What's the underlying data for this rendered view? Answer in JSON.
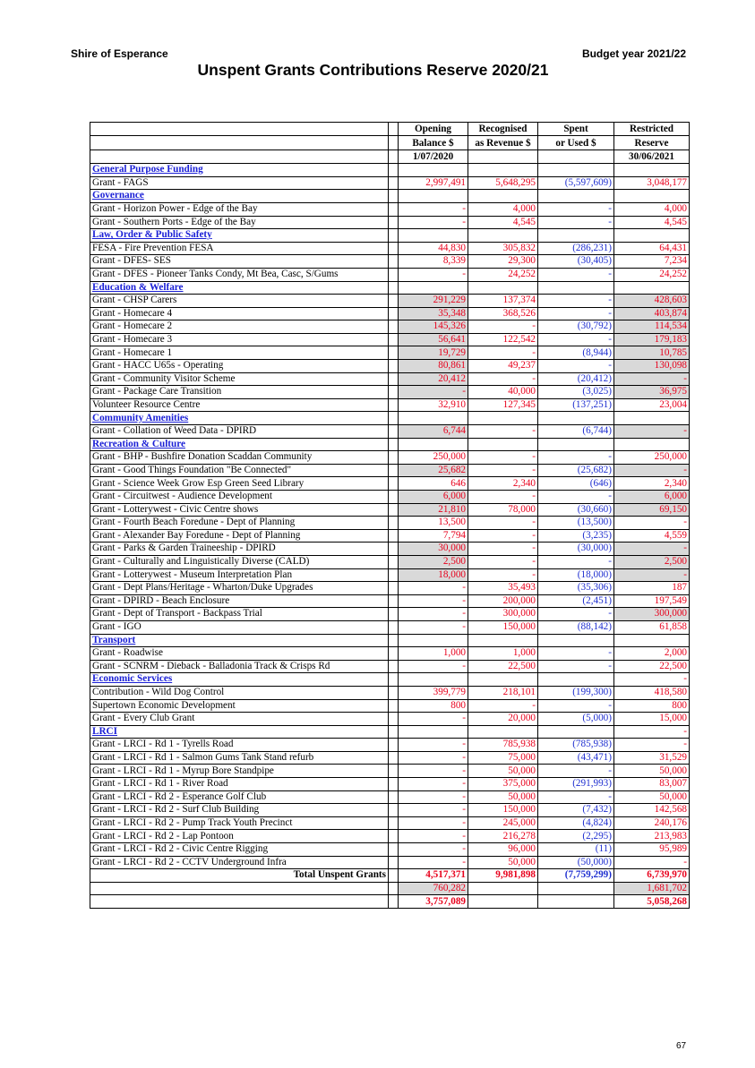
{
  "header": {
    "org": "Shire of Esperance",
    "budget": "Budget year 2021/22",
    "title": "Unspent Grants Contributions Reserve 2020/21"
  },
  "columns": [
    {
      "l1": "Opening",
      "l2": "Balance $",
      "l3": "1/07/2020"
    },
    {
      "l1": "Recognised",
      "l2": "as Revenue $",
      "l3": ""
    },
    {
      "l1": "Spent",
      "l2": "or Used $",
      "l3": ""
    },
    {
      "l1": "Restricted",
      "l2": "Reserve",
      "l3": "30/06/2021"
    }
  ],
  "rows": [
    {
      "t": "s",
      "name": "General Purpose Funding"
    },
    {
      "t": "r",
      "name": "Grant - FAGS",
      "v": [
        "2,997,491",
        "5,648,295",
        "(5,597,609)",
        "3,048,177"
      ],
      "sh": [
        0,
        0,
        0,
        0
      ]
    },
    {
      "t": "s",
      "name": "Governance"
    },
    {
      "t": "r",
      "name": "Grant - Horizon Power - Edge of the Bay",
      "v": [
        "-",
        "4,000",
        "-",
        "4,000"
      ],
      "sh": [
        0,
        0,
        0,
        0
      ]
    },
    {
      "t": "r",
      "name": "Grant - Southern Ports - Edge of the Bay",
      "v": [
        "-",
        "4,545",
        "-",
        "4,545"
      ],
      "sh": [
        0,
        0,
        0,
        0
      ]
    },
    {
      "t": "s",
      "name": "Law, Order & Public Safety"
    },
    {
      "t": "r",
      "name": "FESA - Fire Prevention FESA",
      "v": [
        "44,830",
        "305,832",
        "(286,231)",
        "64,431"
      ],
      "sh": [
        0,
        0,
        0,
        0
      ]
    },
    {
      "t": "r",
      "name": "Grant - DFES- SES",
      "v": [
        "8,339",
        "29,300",
        "(30,405)",
        "7,234"
      ],
      "sh": [
        0,
        0,
        0,
        0
      ]
    },
    {
      "t": "r",
      "name": "Grant - DFES - Pioneer Tanks Condy, Mt Bea, Casc, S/Gums",
      "v": [
        "-",
        "24,252",
        "-",
        "24,252"
      ],
      "sh": [
        0,
        0,
        0,
        0
      ]
    },
    {
      "t": "s",
      "name": "Education & Welfare"
    },
    {
      "t": "r",
      "name": "Grant - CHSP Carers",
      "v": [
        "291,229",
        "137,374",
        "-",
        "428,603"
      ],
      "sh": [
        1,
        0,
        0,
        1
      ]
    },
    {
      "t": "r",
      "name": "Grant - Homecare 4",
      "v": [
        "35,348",
        "368,526",
        "-",
        "403,874"
      ],
      "sh": [
        1,
        0,
        0,
        1
      ]
    },
    {
      "t": "r",
      "name": "Grant - Homecare 2",
      "v": [
        "145,326",
        "-",
        "(30,792)",
        "114,534"
      ],
      "sh": [
        1,
        0,
        0,
        1
      ]
    },
    {
      "t": "r",
      "name": "Grant - Homecare 3",
      "v": [
        "56,641",
        "122,542",
        "-",
        "179,183"
      ],
      "sh": [
        1,
        0,
        0,
        1
      ]
    },
    {
      "t": "r",
      "name": "Grant - Homecare 1",
      "v": [
        "19,729",
        "-",
        "(8,944)",
        "10,785"
      ],
      "sh": [
        1,
        0,
        0,
        1
      ]
    },
    {
      "t": "r",
      "name": "Grant - HACC U65s - Operating",
      "v": [
        "80,861",
        "49,237",
        "-",
        "130,098"
      ],
      "sh": [
        1,
        0,
        0,
        1
      ]
    },
    {
      "t": "r",
      "name": "Grant - Community Visitor Scheme",
      "v": [
        "20,412",
        "-",
        "(20,412)",
        "-"
      ],
      "sh": [
        1,
        0,
        0,
        1
      ]
    },
    {
      "t": "r",
      "name": "Grant - Package Care Transition",
      "v": [
        "-",
        "40,000",
        "(3,025)",
        "36,975"
      ],
      "sh": [
        1,
        0,
        0,
        1
      ]
    },
    {
      "t": "r",
      "name": "Volunteer Resource Centre",
      "v": [
        "32,910",
        "127,345",
        "(137,251)",
        "23,004"
      ],
      "sh": [
        0,
        0,
        0,
        0
      ]
    },
    {
      "t": "s",
      "name": "Community Amenities"
    },
    {
      "t": "r",
      "name": "Grant - Collation of Weed Data - DPIRD",
      "v": [
        "6,744",
        "-",
        "(6,744)",
        "-"
      ],
      "sh": [
        1,
        0,
        0,
        1
      ]
    },
    {
      "t": "s",
      "name": "Recreation & Culture"
    },
    {
      "t": "r",
      "name": "Grant - BHP - Bushfire Donation Scaddan Community",
      "v": [
        "250,000",
        "-",
        "-",
        "250,000"
      ],
      "sh": [
        0,
        0,
        0,
        0
      ]
    },
    {
      "t": "r",
      "name": "Grant - Good Things Foundation \"Be Connected\"",
      "v": [
        "25,682",
        "-",
        "(25,682)",
        "-"
      ],
      "sh": [
        1,
        0,
        0,
        1
      ]
    },
    {
      "t": "r",
      "name": "Grant - Science Week Grow Esp Green Seed Library",
      "v": [
        "646",
        "2,340",
        "(646)",
        "2,340"
      ],
      "sh": [
        0,
        0,
        0,
        0
      ]
    },
    {
      "t": "r",
      "name": "Grant - Circuitwest - Audience Development",
      "v": [
        "6,000",
        "-",
        "-",
        "6,000"
      ],
      "sh": [
        1,
        0,
        0,
        1
      ]
    },
    {
      "t": "r",
      "name": "Grant - Lotterywest - Civic Centre shows",
      "v": [
        "21,810",
        "78,000",
        "(30,660)",
        "69,150"
      ],
      "sh": [
        1,
        0,
        0,
        1
      ]
    },
    {
      "t": "r",
      "name": "Grant - Fourth Beach Foredune - Dept of Planning",
      "v": [
        "13,500",
        "-",
        "(13,500)",
        "-"
      ],
      "sh": [
        0,
        0,
        0,
        0
      ]
    },
    {
      "t": "r",
      "name": "Grant - Alexander Bay Foredune - Dept of Planning",
      "v": [
        "7,794",
        "-",
        "(3,235)",
        "4,559"
      ],
      "sh": [
        0,
        0,
        0,
        0
      ]
    },
    {
      "t": "r",
      "name": "Grant - Parks & Garden Traineeship - DPIRD",
      "v": [
        "30,000",
        "-",
        "(30,000)",
        "-"
      ],
      "sh": [
        1,
        0,
        0,
        1
      ]
    },
    {
      "t": "r",
      "name": "Grant - Culturally and Linguistically Diverse (CALD)",
      "v": [
        "2,500",
        "-",
        "-",
        "2,500"
      ],
      "sh": [
        1,
        0,
        0,
        1
      ]
    },
    {
      "t": "r",
      "name": "Grant - Lotterywest - Museum Interpretation Plan",
      "v": [
        "18,000",
        "-",
        "(18,000)",
        "-"
      ],
      "sh": [
        1,
        0,
        0,
        1
      ]
    },
    {
      "t": "r",
      "name": "Grant - Dept Plans/Heritage - Wharton/Duke Upgrades",
      "v": [
        "-",
        "35,493",
        "(35,306)",
        "187"
      ],
      "sh": [
        0,
        0,
        0,
        0
      ]
    },
    {
      "t": "r",
      "name": "Grant - DPIRD - Beach Enclosure",
      "v": [
        "-",
        "200,000",
        "(2,451)",
        "197,549"
      ],
      "sh": [
        0,
        0,
        0,
        0
      ]
    },
    {
      "t": "r",
      "name": "Grant - Dept of Transport - Backpass Trial",
      "v": [
        "-",
        "300,000",
        "-",
        "300,000"
      ],
      "sh": [
        0,
        0,
        0,
        1
      ]
    },
    {
      "t": "r",
      "name": "Grant - IGO",
      "v": [
        "-",
        "150,000",
        "(88,142)",
        "61,858"
      ],
      "sh": [
        0,
        0,
        0,
        0
      ]
    },
    {
      "t": "s",
      "name": "Transport"
    },
    {
      "t": "r",
      "name": "Grant - Roadwise",
      "v": [
        "1,000",
        "1,000",
        "-",
        "2,000"
      ],
      "sh": [
        0,
        0,
        0,
        0
      ]
    },
    {
      "t": "r",
      "name": "Grant - SCNRM - Dieback - Balladonia Track & Crisps Rd",
      "v": [
        "-",
        "22,500",
        "-",
        "22,500"
      ],
      "sh": [
        0,
        0,
        0,
        0
      ]
    },
    {
      "t": "s",
      "name": "Economic Services",
      "v": [
        "",
        "",
        "",
        "-"
      ]
    },
    {
      "t": "r",
      "name": "Contribution - Wild Dog Control",
      "v": [
        "399,779",
        "218,101",
        "(199,300)",
        "418,580"
      ],
      "sh": [
        0,
        0,
        0,
        0
      ]
    },
    {
      "t": "r",
      "name": "Supertown Economic Development",
      "v": [
        "800",
        "-",
        "-",
        "800"
      ],
      "sh": [
        0,
        0,
        0,
        0
      ]
    },
    {
      "t": "r",
      "name": "Grant - Every Club Grant",
      "v": [
        "-",
        "20,000",
        "(5,000)",
        "15,000"
      ],
      "sh": [
        0,
        0,
        0,
        0
      ]
    },
    {
      "t": "s",
      "name": "LRCI",
      "v": [
        "",
        "",
        "",
        "-"
      ]
    },
    {
      "t": "r",
      "name": "Grant - LRCI - Rd 1 - Tyrells Road",
      "v": [
        "-",
        "785,938",
        "(785,938)",
        "-"
      ],
      "sh": [
        0,
        0,
        0,
        0
      ]
    },
    {
      "t": "r",
      "name": "Grant - LRCI - Rd 1 - Salmon Gums Tank Stand refurb",
      "v": [
        "-",
        "75,000",
        "(43,471)",
        "31,529"
      ],
      "sh": [
        0,
        0,
        0,
        0
      ]
    },
    {
      "t": "r",
      "name": "Grant - LRCI - Rd 1 - Myrup Bore Standpipe",
      "v": [
        "-",
        "50,000",
        "-",
        "50,000"
      ],
      "sh": [
        0,
        0,
        0,
        0
      ]
    },
    {
      "t": "r",
      "name": "Grant - LRCI - Rd 1 - River Road",
      "v": [
        "-",
        "375,000",
        "(291,993)",
        "83,007"
      ],
      "sh": [
        0,
        0,
        0,
        0
      ]
    },
    {
      "t": "r",
      "name": "Grant - LRCI - Rd 2 - Esperance Golf Club",
      "v": [
        "-",
        "50,000",
        "-",
        "50,000"
      ],
      "sh": [
        0,
        0,
        0,
        0
      ]
    },
    {
      "t": "r",
      "name": "Grant - LRCI - Rd 2 - Surf Club Building",
      "v": [
        "-",
        "150,000",
        "(7,432)",
        "142,568"
      ],
      "sh": [
        0,
        0,
        0,
        0
      ]
    },
    {
      "t": "r",
      "name": "Grant - LRCI - Rd 2 - Pump Track Youth Precinct",
      "v": [
        "-",
        "245,000",
        "(4,824)",
        "240,176"
      ],
      "sh": [
        0,
        0,
        0,
        0
      ]
    },
    {
      "t": "r",
      "name": "Grant - LRCI - Rd 2 - Lap Pontoon",
      "v": [
        "-",
        "216,278",
        "(2,295)",
        "213,983"
      ],
      "sh": [
        0,
        0,
        0,
        0
      ]
    },
    {
      "t": "r",
      "name": "Grant - LRCI - Rd 2 - Civic Centre Rigging",
      "v": [
        "-",
        "96,000",
        "(11)",
        "95,989"
      ],
      "sh": [
        0,
        0,
        0,
        0
      ]
    },
    {
      "t": "r",
      "name": "Grant - LRCI - Rd 2 - CCTV Underground Infra",
      "v": [
        "-",
        "50,000",
        "(50,000)",
        "-"
      ],
      "sh": [
        0,
        0,
        0,
        0
      ]
    }
  ],
  "total": {
    "label": "Total Unspent Grants",
    "v": [
      "4,517,371",
      "9,981,898",
      "(7,759,299)",
      "6,739,970"
    ]
  },
  "extra1": {
    "v": [
      "760,282",
      "",
      "",
      "1,681,702"
    ]
  },
  "extra2": {
    "v": [
      "3,757,089",
      "",
      "",
      "5,058,268"
    ]
  },
  "page_number": "67",
  "colors": {
    "value_red": "#e8001c",
    "spent_blue": "#1f2fd0",
    "section_blue": "#1a1fd6",
    "shade": "#d9d9d9"
  }
}
